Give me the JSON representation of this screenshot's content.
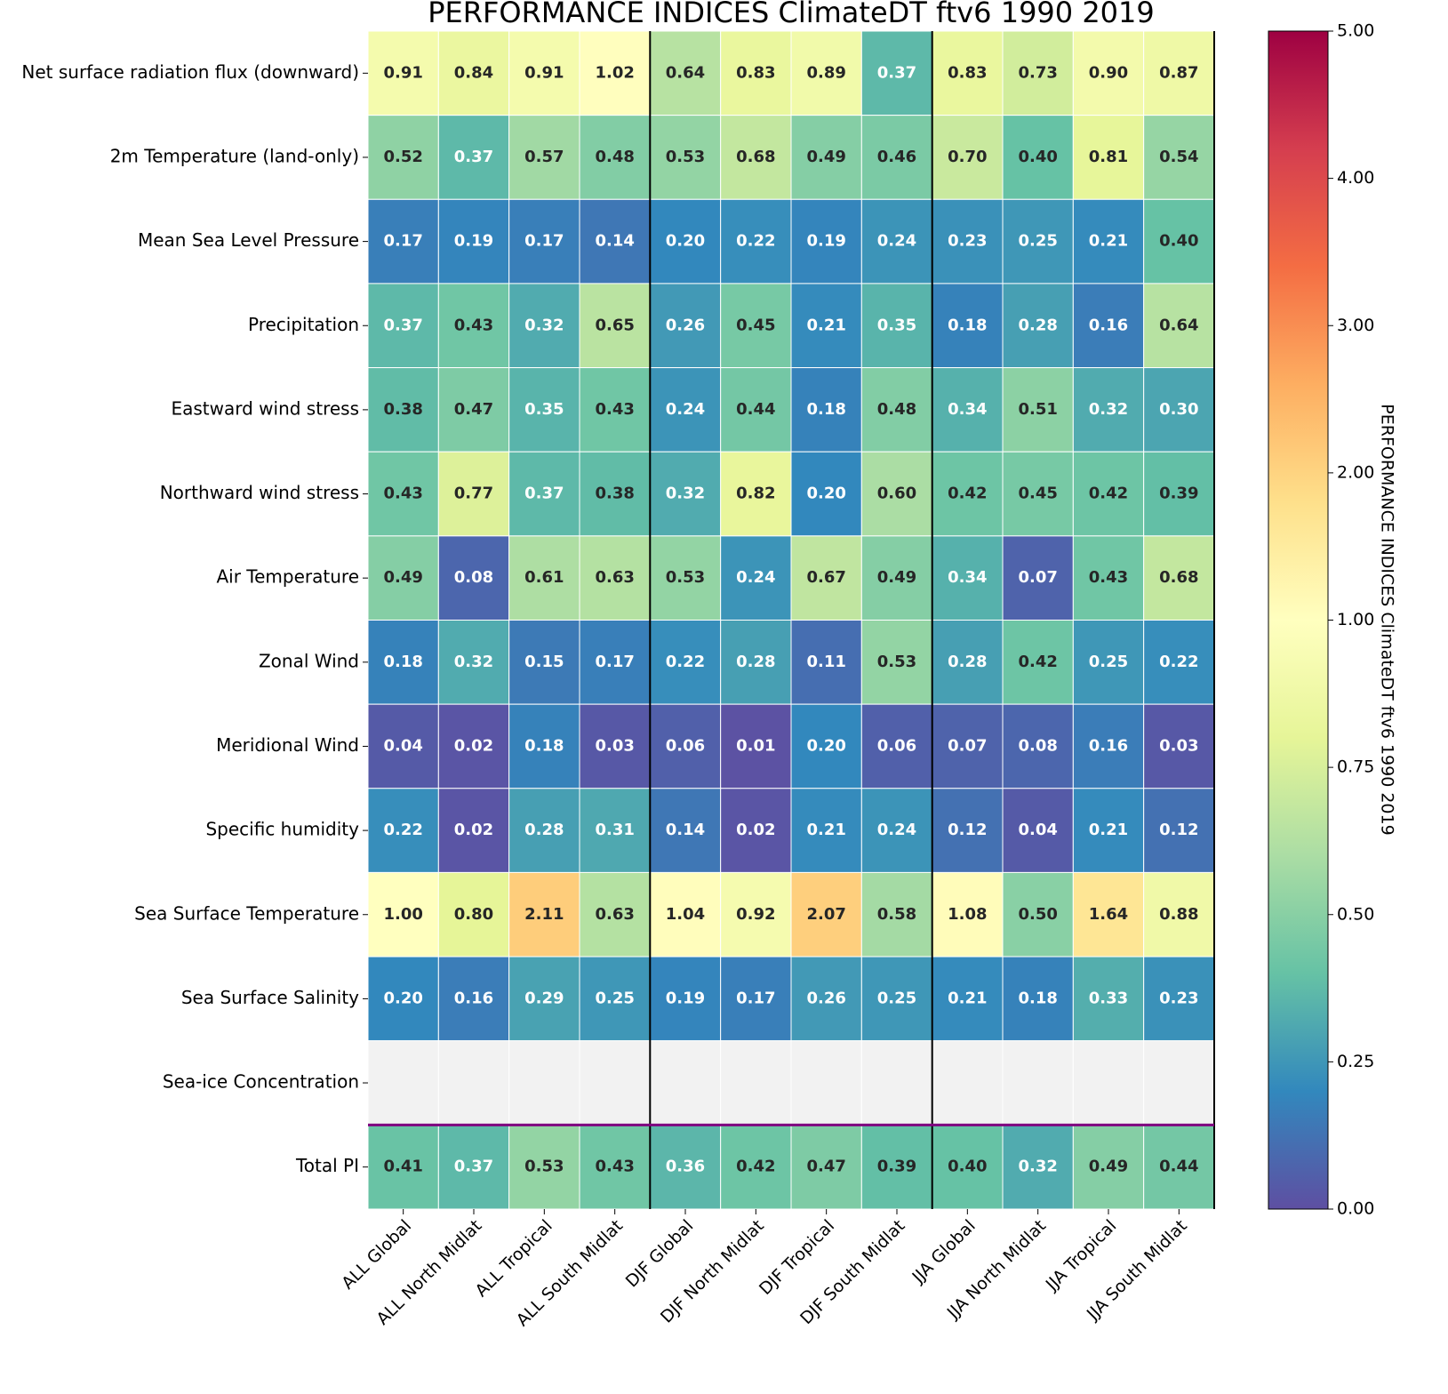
{
  "chart_data": {
    "type": "heatmap",
    "title": "PERFORMANCE INDICES ClimateDT ftv6 1990 2019",
    "categories": [
      "ALL Global",
      "ALL North Midlat",
      "ALL Tropical",
      "ALL South Midlat",
      "DJF Global",
      "DJF North Midlat",
      "DJF Tropical",
      "DJF South Midlat",
      "JJA Global",
      "JJA North Midlat",
      "JJA Tropical",
      "JJA South Midlat"
    ],
    "rows": [
      "Net surface radiation flux (downward)",
      "2m Temperature (land-only)",
      "Mean Sea Level Pressure",
      "Precipitation",
      "Eastward wind stress",
      "Northward wind stress",
      "Air Temperature",
      "Zonal Wind",
      "Meridional Wind",
      "Specific humidity",
      "Sea Surface Temperature",
      "Sea Surface Salinity",
      "Sea-ice Concentration",
      "Total PI"
    ],
    "values": [
      [
        0.91,
        0.84,
        0.91,
        1.02,
        0.64,
        0.83,
        0.89,
        0.37,
        0.83,
        0.73,
        0.9,
        0.87
      ],
      [
        0.52,
        0.37,
        0.57,
        0.48,
        0.53,
        0.68,
        0.49,
        0.46,
        0.7,
        0.4,
        0.81,
        0.54
      ],
      [
        0.17,
        0.19,
        0.17,
        0.14,
        0.2,
        0.22,
        0.19,
        0.24,
        0.23,
        0.25,
        0.21,
        0.4
      ],
      [
        0.37,
        0.43,
        0.32,
        0.65,
        0.26,
        0.45,
        0.21,
        0.35,
        0.18,
        0.28,
        0.16,
        0.64
      ],
      [
        0.38,
        0.47,
        0.35,
        0.43,
        0.24,
        0.44,
        0.18,
        0.48,
        0.34,
        0.51,
        0.32,
        0.3
      ],
      [
        0.43,
        0.77,
        0.37,
        0.38,
        0.32,
        0.82,
        0.2,
        0.6,
        0.42,
        0.45,
        0.42,
        0.39
      ],
      [
        0.49,
        0.08,
        0.61,
        0.63,
        0.53,
        0.24,
        0.67,
        0.49,
        0.34,
        0.07,
        0.43,
        0.68
      ],
      [
        0.18,
        0.32,
        0.15,
        0.17,
        0.22,
        0.28,
        0.11,
        0.53,
        0.28,
        0.42,
        0.25,
        0.22
      ],
      [
        0.04,
        0.02,
        0.18,
        0.03,
        0.06,
        0.01,
        0.2,
        0.06,
        0.07,
        0.08,
        0.16,
        0.03
      ],
      [
        0.22,
        0.02,
        0.28,
        0.31,
        0.14,
        0.02,
        0.21,
        0.24,
        0.12,
        0.04,
        0.21,
        0.12
      ],
      [
        1.0,
        0.8,
        2.11,
        0.63,
        1.04,
        0.92,
        2.07,
        0.58,
        1.08,
        0.5,
        1.64,
        0.88
      ],
      [
        0.2,
        0.16,
        0.29,
        0.25,
        0.19,
        0.17,
        0.26,
        0.25,
        0.21,
        0.18,
        0.33,
        0.23
      ],
      [
        null,
        null,
        null,
        null,
        null,
        null,
        null,
        null,
        null,
        null,
        null,
        null
      ],
      [
        0.41,
        0.37,
        0.53,
        0.43,
        0.36,
        0.42,
        0.47,
        0.39,
        0.4,
        0.32,
        0.49,
        0.44
      ]
    ],
    "value_labels": [
      [
        "0.91",
        "0.84",
        "0.91",
        "1.02",
        "0.64",
        "0.83",
        "0.89",
        "0.37",
        "0.83",
        "0.73",
        "0.90",
        "0.87"
      ],
      [
        "0.52",
        "0.37",
        "0.57",
        "0.48",
        "0.53",
        "0.68",
        "0.49",
        "0.46",
        "0.70",
        "0.40",
        "0.81",
        "0.54"
      ],
      [
        "0.17",
        "0.19",
        "0.17",
        "0.14",
        "0.20",
        "0.22",
        "0.19",
        "0.24",
        "0.23",
        "0.25",
        "0.21",
        "0.40"
      ],
      [
        "0.37",
        "0.43",
        "0.32",
        "0.65",
        "0.26",
        "0.45",
        "0.21",
        "0.35",
        "0.18",
        "0.28",
        "0.16",
        "0.64"
      ],
      [
        "0.38",
        "0.47",
        "0.35",
        "0.43",
        "0.24",
        "0.44",
        "0.18",
        "0.48",
        "0.34",
        "0.51",
        "0.32",
        "0.30"
      ],
      [
        "0.43",
        "0.77",
        "0.37",
        "0.38",
        "0.32",
        "0.82",
        "0.20",
        "0.60",
        "0.42",
        "0.45",
        "0.42",
        "0.39"
      ],
      [
        "0.49",
        "0.08",
        "0.61",
        "0.63",
        "0.53",
        "0.24",
        "0.67",
        "0.49",
        "0.34",
        "0.07",
        "0.43",
        "0.68"
      ],
      [
        "0.18",
        "0.32",
        "0.15",
        "0.17",
        "0.22",
        "0.28",
        "0.11",
        "0.53",
        "0.28",
        "0.42",
        "0.25",
        "0.22"
      ],
      [
        "0.04",
        "0.02",
        "0.18",
        "0.03",
        "0.06",
        "0.01",
        "0.20",
        "0.06",
        "0.07",
        "0.08",
        "0.16",
        "0.03"
      ],
      [
        "0.22",
        "0.02",
        "0.28",
        "0.31",
        "0.14",
        "0.02",
        "0.21",
        "0.24",
        "0.12",
        "0.04",
        "0.21",
        "0.12"
      ],
      [
        "1.00",
        "0.80",
        "2.11",
        "0.63",
        "1.04",
        "0.92",
        "2.07",
        "0.58",
        "1.08",
        "0.50",
        "1.64",
        "0.88"
      ],
      [
        "0.20",
        "0.16",
        "0.29",
        "0.25",
        "0.19",
        "0.17",
        "0.26",
        "0.25",
        "0.21",
        "0.18",
        "0.33",
        "0.23"
      ],
      [
        null,
        null,
        null,
        null,
        null,
        null,
        null,
        null,
        null,
        null,
        null,
        null
      ],
      [
        "0.41",
        "0.37",
        "0.53",
        "0.43",
        "0.36",
        "0.42",
        "0.47",
        "0.39",
        "0.40",
        "0.32",
        "0.49",
        "0.44"
      ]
    ],
    "clim": [
      0,
      5
    ],
    "center": 1,
    "colors": [
      "#5e4fa2",
      "#3288bd",
      "#66c2a5",
      "#abdda4",
      "#e6f598",
      "#ffffbf",
      "#fee08b",
      "#fdae61",
      "#f46d43",
      "#d53e4f",
      "#9e0142"
    ],
    "nan_color": "#f2f2f2",
    "colorbar_label": "PERFORMANCE INDICES ClimateDT ftv6 1990 2019",
    "colorbar_ticks": [
      {
        "value": 0,
        "label": "0.00"
      },
      {
        "value": 0.25,
        "label": "0.25"
      },
      {
        "value": 0.5,
        "label": "0.50"
      },
      {
        "value": 0.75,
        "label": "0.75"
      },
      {
        "value": 1,
        "label": "1.00"
      },
      {
        "value": 2,
        "label": "2.00"
      },
      {
        "value": 3,
        "label": "3.00"
      },
      {
        "value": 4,
        "label": "4.00"
      },
      {
        "value": 5,
        "label": "5.00"
      }
    ]
  }
}
